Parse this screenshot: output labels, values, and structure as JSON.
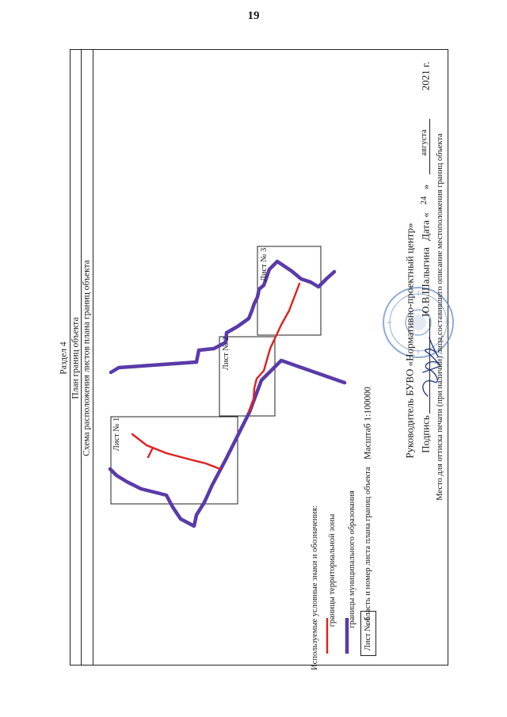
{
  "page": {
    "number": "19"
  },
  "header": {
    "section": "Раздел 4",
    "title": "План границ объекта",
    "subtitle": "Схема расположения листов плана границ объекта"
  },
  "sheets": [
    "Лист № 1",
    "Лист № 2",
    "Лист № 3"
  ],
  "legend": {
    "heading": "Используемые условные знаки и обозначения:",
    "items": [
      {
        "label": "границы территориальной зоны",
        "color": "#e0201e"
      },
      {
        "label": "границы муниципального образования",
        "color": "#5a3aa8"
      },
      {
        "label": "область и номер листа плана границ объекта",
        "box_label": "Лист № 1"
      }
    ]
  },
  "scale": "Масштаб 1:100000",
  "signature": {
    "head_line": "Руководитель БУВО «Нормативно-проектный центр»",
    "sign_label": "Подпись",
    "signer_name": "Ю.В.Шалыгина",
    "date_label": "Дата «",
    "date_day": "24",
    "date_close": "»",
    "date_month": "августа",
    "date_year": "2021 г.",
    "stamp_note": "Место для оттиска печати (при наличии) лица,составившего описание местоположения границ объекта"
  },
  "colors": {
    "zone": "#e0201e",
    "municipal": "#5a3aa8",
    "stamp": "#6b8fc8"
  }
}
